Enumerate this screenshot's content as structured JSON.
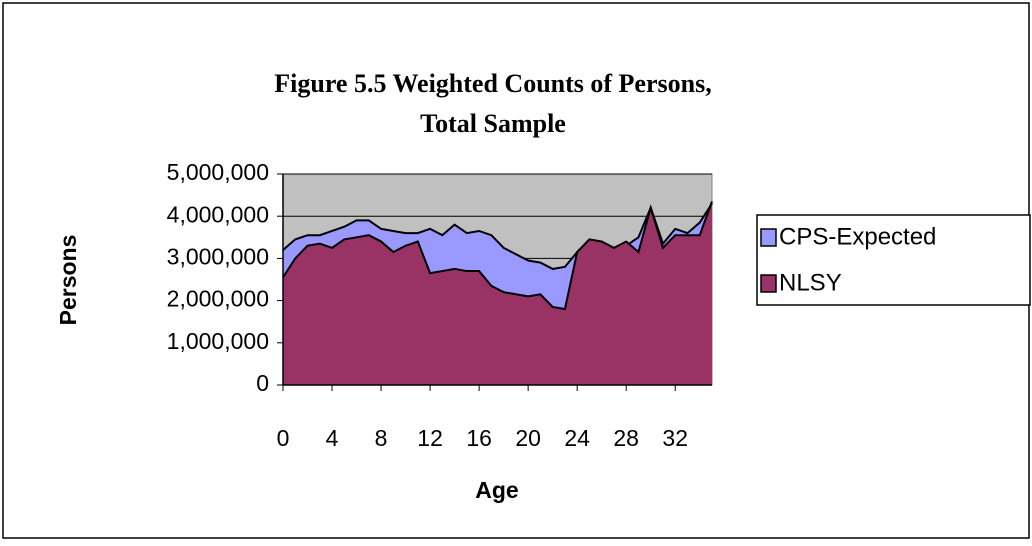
{
  "chart_data": {
    "type": "area",
    "title": [
      "Figure 5.5 Weighted Counts of Persons,",
      "Total Sample"
    ],
    "xlabel": "Age",
    "ylabel": "Persons",
    "x": [
      0,
      1,
      2,
      3,
      4,
      5,
      6,
      7,
      8,
      9,
      10,
      11,
      12,
      13,
      14,
      15,
      16,
      17,
      18,
      19,
      20,
      21,
      22,
      23,
      24,
      25,
      26,
      27,
      28,
      29,
      30,
      31,
      32,
      33,
      34,
      35
    ],
    "xlim": [
      0,
      35
    ],
    "xticks": [
      0,
      4,
      8,
      12,
      16,
      20,
      24,
      28,
      32
    ],
    "ylim": [
      0,
      5000000
    ],
    "yticks": [
      0,
      {
        "value": 1000000,
        "label": "1,000,000"
      },
      {
        "value": 2000000,
        "label": "2,000,000"
      },
      {
        "value": 3000000,
        "label": "3,000,000"
      },
      {
        "value": 4000000,
        "label": "4,000,000"
      },
      {
        "value": 5000000,
        "label": "5,000,000"
      }
    ],
    "grid": true,
    "plot_background": "#c0c0c0",
    "legend": "right",
    "series": [
      {
        "name": "CPS-Expected",
        "color": "#9999ff",
        "values": [
          3200000,
          3450000,
          3550000,
          3550000,
          3650000,
          3750000,
          3900000,
          3900000,
          3700000,
          3650000,
          3600000,
          3600000,
          3700000,
          3550000,
          3800000,
          3600000,
          3650000,
          3550000,
          3250000,
          3100000,
          2950000,
          2900000,
          2750000,
          2800000,
          3150000,
          3450000,
          3300000,
          3250000,
          3300000,
          3500000,
          4200000,
          3350000,
          3700000,
          3600000,
          3850000,
          4300000
        ]
      },
      {
        "name": "NLSY",
        "color": "#993366",
        "values": [
          2550000,
          3000000,
          3300000,
          3350000,
          3250000,
          3450000,
          3500000,
          3550000,
          3400000,
          3150000,
          3300000,
          3400000,
          2650000,
          2700000,
          2750000,
          2700000,
          2700000,
          2350000,
          2200000,
          2150000,
          2100000,
          2150000,
          1850000,
          1800000,
          3150000,
          3450000,
          3400000,
          3250000,
          3400000,
          3150000,
          4200000,
          3250000,
          3550000,
          3550000,
          3550000,
          4350000
        ]
      }
    ]
  }
}
